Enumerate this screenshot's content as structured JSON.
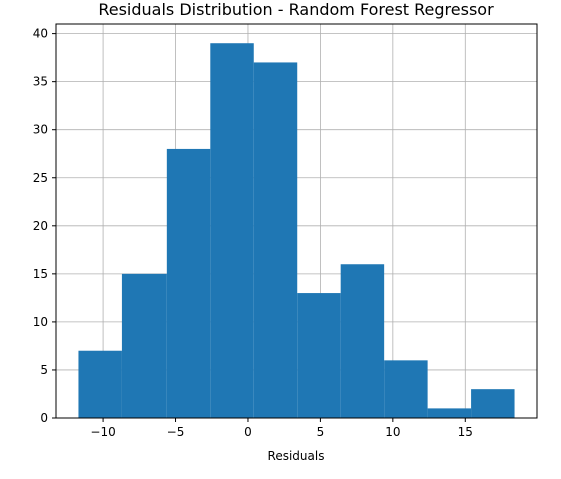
{
  "chart_data": {
    "type": "bar",
    "title": "Residuals Distribution - Random Forest Regressor",
    "xlabel": "Residuals",
    "ylabel": "",
    "xlim": [
      -13.25,
      19.95
    ],
    "ylim": [
      0,
      41
    ],
    "xticks": [
      -10,
      -5,
      0,
      5,
      10,
      15
    ],
    "xtick_labels": [
      "−10",
      "−5",
      "0",
      "5",
      "10",
      "15"
    ],
    "yticks": [
      0,
      5,
      10,
      15,
      20,
      25,
      30,
      35,
      40
    ],
    "ytick_labels": [
      "0",
      "5",
      "10",
      "15",
      "20",
      "25",
      "30",
      "35",
      "40"
    ],
    "grid": true,
    "bar_color": "#1f77b4",
    "grid_color": "#b0b0b0",
    "bins": [
      {
        "x0": -11.7,
        "x1": -8.7,
        "count": 7
      },
      {
        "x0": -8.7,
        "x1": -5.6,
        "count": 15
      },
      {
        "x0": -5.6,
        "x1": -2.6,
        "count": 28
      },
      {
        "x0": -2.6,
        "x1": 0.4,
        "count": 39
      },
      {
        "x0": 0.4,
        "x1": 3.4,
        "count": 37
      },
      {
        "x0": 3.4,
        "x1": 6.4,
        "count": 13
      },
      {
        "x0": 6.4,
        "x1": 9.4,
        "count": 16
      },
      {
        "x0": 9.4,
        "x1": 12.4,
        "count": 6
      },
      {
        "x0": 12.4,
        "x1": 15.4,
        "count": 1
      },
      {
        "x0": 15.4,
        "x1": 18.4,
        "count": 3
      }
    ]
  }
}
